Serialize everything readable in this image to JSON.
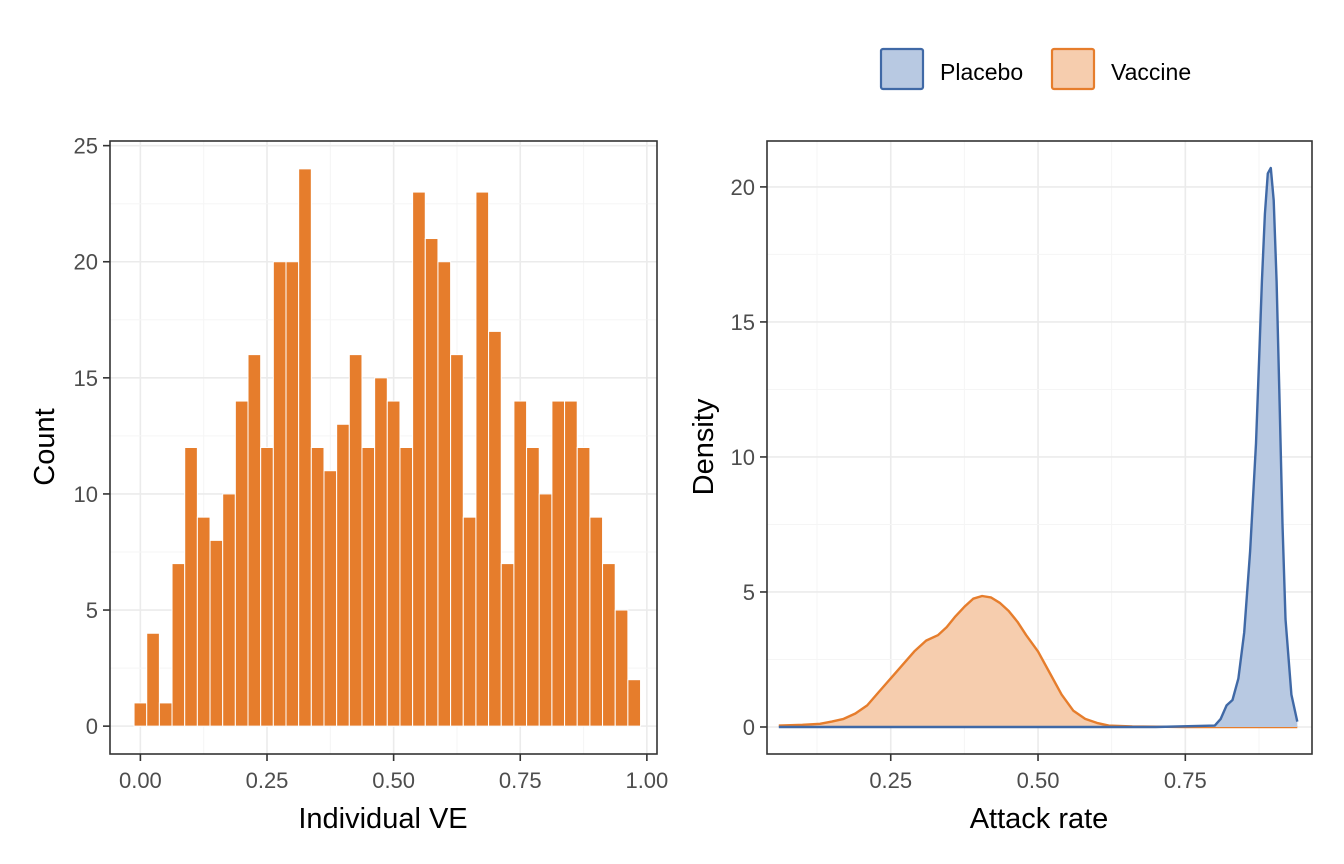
{
  "legend": {
    "placement": "top-right",
    "items": [
      {
        "label": "Placebo",
        "fill": "#B8C9E2",
        "stroke": "#4069A6"
      },
      {
        "label": "Vaccine",
        "fill": "#F6CDAE",
        "stroke": "#E67D2C"
      }
    ]
  },
  "chart_data": [
    {
      "type": "bar",
      "xlabel": "Individual VE",
      "ylabel": "Count",
      "xlim": [
        -0.06,
        1.02
      ],
      "ylim": [
        -1.2,
        25.2
      ],
      "xticks": [
        "0.00",
        "0.25",
        "0.50",
        "0.75",
        "1.00"
      ],
      "yticks": [
        "0",
        "5",
        "10",
        "15",
        "20",
        "25"
      ],
      "bin_width": 0.025,
      "bin_start": 0.0,
      "values": [
        1,
        4,
        1,
        7,
        12,
        9,
        8,
        10,
        14,
        16,
        12,
        20,
        20,
        24,
        12,
        11,
        13,
        16,
        12,
        15,
        14,
        12,
        23,
        21,
        20,
        16,
        9,
        23,
        17,
        7,
        14,
        12,
        10,
        14,
        14,
        12,
        9,
        7,
        5,
        2
      ],
      "color": "#E67D2C",
      "grid": true
    },
    {
      "type": "area",
      "xlabel": "Attack rate",
      "ylabel": "Density",
      "xlim": [
        0.04,
        0.965
      ],
      "ylim": [
        -1.0,
        21.7
      ],
      "xticks": [
        "0.25",
        "0.50",
        "0.75"
      ],
      "yticks": [
        "0",
        "5",
        "10",
        "15",
        "20"
      ],
      "grid": true,
      "series": [
        {
          "name": "Vaccine",
          "x": [
            0.06,
            0.1,
            0.13,
            0.15,
            0.17,
            0.19,
            0.21,
            0.23,
            0.25,
            0.27,
            0.29,
            0.31,
            0.33,
            0.345,
            0.36,
            0.375,
            0.39,
            0.405,
            0.42,
            0.435,
            0.45,
            0.465,
            0.48,
            0.5,
            0.52,
            0.54,
            0.56,
            0.58,
            0.6,
            0.62,
            0.66,
            0.75,
            0.85,
            0.94
          ],
          "y": [
            0.05,
            0.08,
            0.12,
            0.2,
            0.3,
            0.5,
            0.8,
            1.3,
            1.8,
            2.3,
            2.8,
            3.2,
            3.4,
            3.7,
            4.1,
            4.45,
            4.75,
            4.85,
            4.8,
            4.6,
            4.3,
            3.9,
            3.4,
            2.8,
            2.0,
            1.2,
            0.6,
            0.3,
            0.15,
            0.05,
            0.02,
            0.0,
            0.0,
            0.0
          ]
        },
        {
          "name": "Placebo",
          "x": [
            0.06,
            0.7,
            0.8,
            0.81,
            0.82,
            0.83,
            0.84,
            0.85,
            0.86,
            0.87,
            0.875,
            0.88,
            0.885,
            0.89,
            0.895,
            0.9,
            0.905,
            0.91,
            0.915,
            0.92,
            0.93,
            0.94
          ],
          "y": [
            0.0,
            0.0,
            0.05,
            0.3,
            0.8,
            1.0,
            1.8,
            3.5,
            6.5,
            10.5,
            13.5,
            16.5,
            19.0,
            20.5,
            20.7,
            19.5,
            16.5,
            12.0,
            7.5,
            4.0,
            1.2,
            0.2
          ]
        }
      ]
    }
  ]
}
